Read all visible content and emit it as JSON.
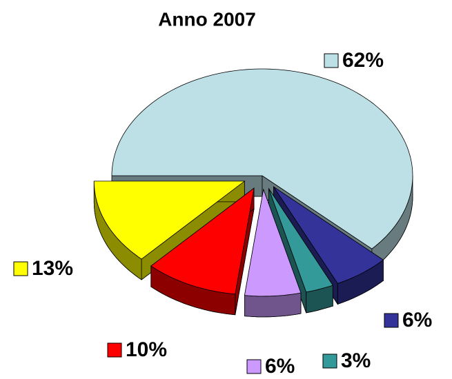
{
  "chart_data": {
    "type": "pie",
    "title": "Anno 2007",
    "values": [
      62,
      6,
      3,
      6,
      10,
      13
    ],
    "value_labels": [
      "62%",
      "6%",
      "3%",
      "6%",
      "10%",
      "13%"
    ],
    "colors": [
      "#bde0e6",
      "#333399",
      "#339999",
      "#cc99ff",
      "#ff0000",
      "#ffff00"
    ]
  }
}
